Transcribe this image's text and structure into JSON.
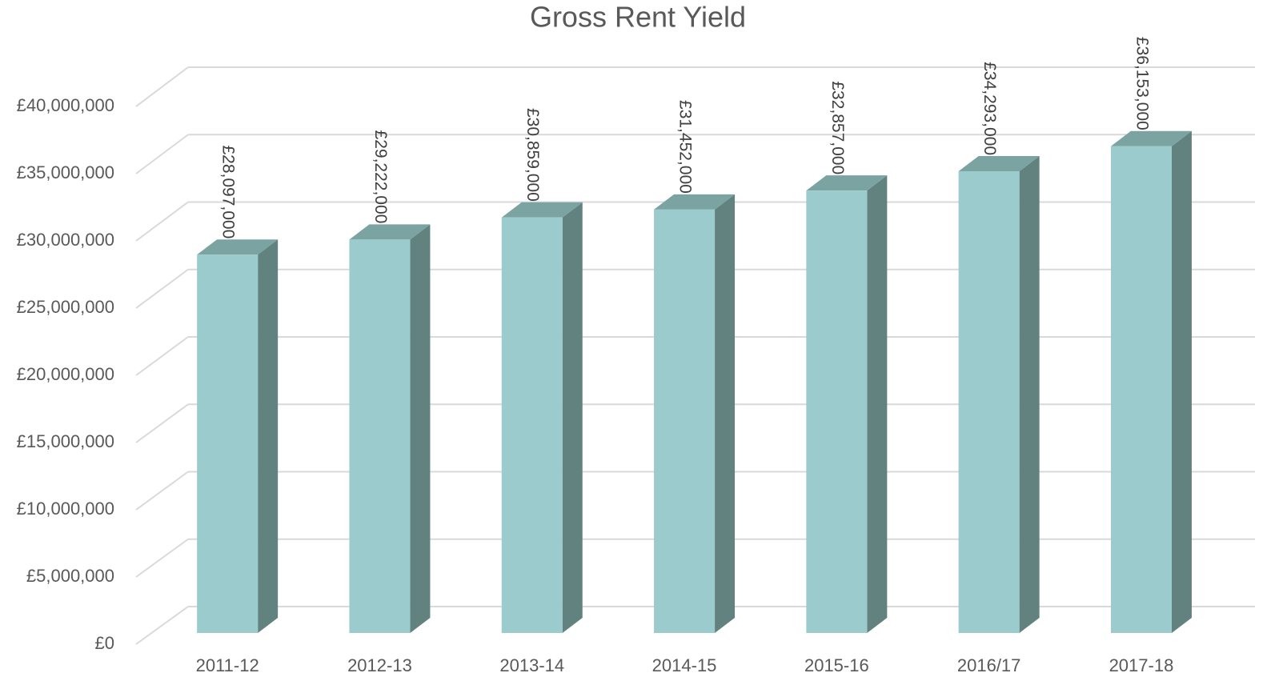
{
  "chart_data": {
    "type": "bar3d",
    "title": "Gross Rent Yield",
    "categories": [
      "2011-12",
      "2012-13",
      "2013-14",
      "2014-15",
      "2015-16",
      "2016/17",
      "2017-18"
    ],
    "values": [
      28097000,
      29222000,
      30859000,
      31452000,
      32857000,
      34293000,
      36153000
    ],
    "value_labels": [
      "£28,097,000",
      "£29,222,000",
      "£30,859,000",
      "£31,452,000",
      "£32,857,000",
      "£34,293,000",
      "£36,153,000"
    ],
    "color": "#9bcbcc",
    "side_color": "#628280",
    "top_color": "#7aa3a2",
    "ylim": [
      0,
      40000000
    ],
    "yticks": [
      {
        "value": 0,
        "label": "£0"
      },
      {
        "value": 5000000,
        "label": "£5,000,000"
      },
      {
        "value": 10000000,
        "label": "£10,000,000"
      },
      {
        "value": 15000000,
        "label": "£15,000,000"
      },
      {
        "value": 20000000,
        "label": "£20,000,000"
      },
      {
        "value": 25000000,
        "label": "£25,000,000"
      },
      {
        "value": 30000000,
        "label": "£30,000,000"
      },
      {
        "value": 35000000,
        "label": "£35,000,000"
      },
      {
        "value": 40000000,
        "label": "£40,000,000"
      }
    ],
    "grid": true
  }
}
